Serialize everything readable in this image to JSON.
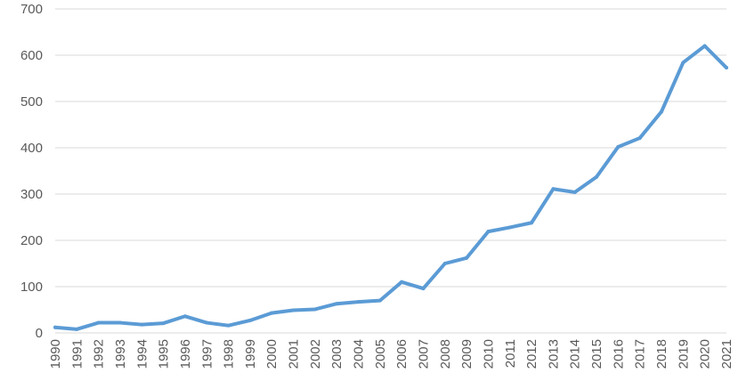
{
  "chart_data": {
    "type": "line",
    "title": "",
    "xlabel": "",
    "ylabel": "",
    "x": [
      "1990",
      "1991",
      "1992",
      "1993",
      "1994",
      "1995",
      "1996",
      "1997",
      "1998",
      "1999",
      "2000",
      "2001",
      "2002",
      "2003",
      "2004",
      "2005",
      "2006",
      "2007",
      "2008",
      "2009",
      "2010",
      "2011",
      "2012",
      "2013",
      "2014",
      "2015",
      "2016",
      "2017",
      "2018",
      "2019",
      "2020",
      "2021"
    ],
    "series": [
      {
        "values": [
          12,
          8,
          22,
          22,
          18,
          21,
          36,
          22,
          16,
          27,
          43,
          49,
          51,
          63,
          67,
          70,
          110,
          96,
          150,
          162,
          219,
          228,
          238,
          311,
          304,
          337,
          402,
          421,
          478,
          584,
          620,
          573
        ]
      }
    ],
    "yticks": [
      "0",
      "100",
      "200",
      "300",
      "400",
      "500",
      "600",
      "700"
    ],
    "ylim": [
      0,
      700
    ],
    "grid": true,
    "legend": "none",
    "colors": {
      "line": "#5B9BD5",
      "grid": "#D9D9D9",
      "text": "#595959"
    }
  }
}
